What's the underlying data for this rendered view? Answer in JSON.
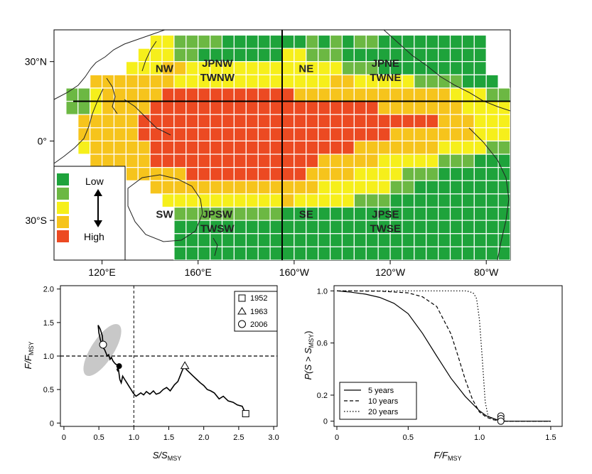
{
  "colors": {
    "scale": [
      "#1ea33b",
      "#6cb843",
      "#f6ef1b",
      "#f6c41c",
      "#ec4a22"
    ],
    "ocean": "#ffffff",
    "line": "#000000",
    "ellipse": "#c8c8c8",
    "grid": "#ffffff"
  },
  "chart_data": [
    {
      "type": "heatmap",
      "title": "",
      "x_ticks": [
        "120°E",
        "160°E",
        "160°W",
        "120°W",
        "80°W"
      ],
      "y_ticks": [
        "30°N",
        "0°",
        "30°S"
      ],
      "lon_range": [
        100,
        290
      ],
      "lat_range": [
        -45,
        42
      ],
      "cell_size_deg": 5,
      "cell_levels_note": "0=Low ... 4=High",
      "rows": [
        {
          "lat": 37.5,
          "lon_start": 142.5,
          "levels": [
            2,
            2,
            1,
            1,
            1,
            1,
            0,
            0,
            0,
            0,
            0,
            0,
            0,
            1,
            0,
            1,
            0,
            1,
            1,
            0,
            0,
            0,
            0,
            0,
            0,
            0,
            0,
            0
          ]
        },
        {
          "lat": 32.5,
          "lon_start": 137.5,
          "levels": [
            2,
            2,
            2,
            1,
            1,
            0,
            0,
            0,
            0,
            0,
            0,
            0,
            2,
            2,
            1,
            1,
            1,
            0,
            0,
            0,
            0,
            0,
            0,
            0,
            0,
            0,
            0,
            0,
            0
          ]
        },
        {
          "lat": 27.5,
          "lon_start": 132.5,
          "levels": [
            2,
            2,
            2,
            3,
            3,
            2,
            2,
            2,
            2,
            2,
            2,
            2,
            2,
            2,
            2,
            2,
            2,
            2,
            1,
            1,
            1,
            0,
            0,
            0,
            0,
            0,
            0,
            0,
            0,
            0
          ]
        },
        {
          "lat": 22.5,
          "lon_start": 117.5,
          "levels": [
            3,
            3,
            3,
            3,
            3,
            3,
            3,
            2,
            2,
            2,
            2,
            2,
            2,
            2,
            2,
            2,
            2,
            2,
            2,
            2,
            3,
            3,
            2,
            2,
            2,
            2,
            2,
            1,
            1,
            1,
            1,
            0,
            0,
            0
          ]
        },
        {
          "lat": 17.5,
          "lon_start": 107.5,
          "levels": [
            1,
            1,
            2,
            3,
            3,
            3,
            3,
            3,
            4,
            4,
            4,
            4,
            4,
            4,
            4,
            4,
            4,
            4,
            4,
            3,
            3,
            3,
            3,
            3,
            3,
            3,
            3,
            3,
            3,
            3,
            3,
            3,
            2,
            2,
            2,
            1,
            1
          ]
        },
        {
          "lat": 12.5,
          "lon_start": 107.5,
          "levels": [
            1,
            1,
            2,
            3,
            3,
            3,
            3,
            4,
            4,
            4,
            4,
            4,
            4,
            4,
            4,
            4,
            4,
            4,
            4,
            4,
            4,
            4,
            4,
            4,
            4,
            4,
            3,
            3,
            3,
            3,
            3,
            3,
            3,
            2,
            2,
            2,
            2,
            1,
            1
          ]
        },
        {
          "lat": 7.5,
          "lon_start": 112.5,
          "levels": [
            3,
            3,
            3,
            3,
            3,
            4,
            4,
            4,
            4,
            4,
            4,
            4,
            4,
            4,
            4,
            4,
            4,
            4,
            4,
            4,
            4,
            4,
            4,
            4,
            4,
            4,
            4,
            4,
            4,
            4,
            3,
            3,
            3,
            2,
            2,
            2,
            2,
            2
          ]
        },
        {
          "lat": 2.5,
          "lon_start": 112.5,
          "levels": [
            3,
            3,
            3,
            3,
            3,
            4,
            4,
            4,
            4,
            4,
            4,
            4,
            4,
            4,
            4,
            4,
            4,
            4,
            4,
            4,
            4,
            4,
            4,
            4,
            4,
            4,
            3,
            3,
            3,
            3,
            3,
            3,
            3,
            2,
            2,
            2,
            2,
            2
          ]
        },
        {
          "lat": -2.5,
          "lon_start": 112.5,
          "levels": [
            2,
            3,
            3,
            3,
            3,
            3,
            4,
            4,
            4,
            4,
            4,
            4,
            4,
            4,
            4,
            4,
            4,
            4,
            4,
            4,
            4,
            4,
            4,
            3,
            3,
            3,
            3,
            3,
            3,
            3,
            2,
            2,
            2,
            2,
            1,
            1,
            1,
            0,
            0
          ]
        },
        {
          "lat": -7.5,
          "lon_start": 117.5,
          "levels": [
            3,
            3,
            3,
            3,
            3,
            4,
            4,
            4,
            4,
            4,
            4,
            4,
            4,
            4,
            4,
            4,
            4,
            4,
            4,
            3,
            3,
            3,
            3,
            3,
            2,
            2,
            2,
            2,
            2,
            1,
            1,
            1,
            0,
            0,
            0,
            0
          ]
        },
        {
          "lat": -12.5,
          "lon_start": 122.5,
          "levels": [
            3,
            3,
            3,
            3,
            3,
            3,
            3,
            4,
            4,
            4,
            4,
            4,
            4,
            4,
            4,
            4,
            4,
            3,
            3,
            3,
            3,
            2,
            2,
            2,
            2,
            1,
            1,
            1,
            0,
            0,
            0,
            0,
            0,
            0
          ]
        },
        {
          "lat": -17.5,
          "lon_start": 142.5,
          "levels": [
            3,
            3,
            3,
            3,
            3,
            3,
            3,
            3,
            3,
            3,
            3,
            3,
            3,
            3,
            2,
            2,
            2,
            2,
            2,
            2,
            1,
            1,
            0,
            0,
            0,
            0,
            0,
            0,
            0,
            0
          ]
        },
        {
          "lat": -22.5,
          "lon_start": 147.5,
          "levels": [
            2,
            2,
            2,
            2,
            2,
            2,
            2,
            2,
            2,
            2,
            3,
            2,
            2,
            2,
            2,
            2,
            1,
            1,
            1,
            0,
            0,
            0,
            0,
            0,
            0,
            0,
            0,
            0,
            0
          ]
        },
        {
          "lat": -27.5,
          "lon_start": 152.5,
          "levels": [
            1,
            1,
            1,
            1,
            1,
            1,
            1,
            1,
            1,
            0,
            0,
            0,
            0,
            0,
            0,
            0,
            0,
            0,
            0,
            0,
            0,
            0,
            0,
            0,
            0,
            0,
            0,
            0
          ]
        },
        {
          "lat": -32.5,
          "lon_start": 152.5,
          "levels": [
            0,
            0,
            0,
            0,
            0,
            0,
            0,
            0,
            0,
            0,
            0,
            0,
            0,
            0,
            0,
            0,
            0,
            0,
            0,
            0,
            0,
            0,
            0,
            0,
            0,
            0,
            0,
            0
          ]
        },
        {
          "lat": -37.5,
          "lon_start": 152.5,
          "levels": [
            0,
            0,
            0,
            0,
            0,
            0,
            0,
            0,
            0,
            0,
            0,
            0,
            0,
            0,
            0,
            0,
            0,
            0,
            0,
            0,
            0,
            0,
            0,
            0,
            0,
            0,
            0,
            0
          ]
        },
        {
          "lat": -42.5,
          "lon_start": 152.5,
          "levels": [
            0,
            0,
            0,
            0,
            0,
            0,
            0,
            0,
            0,
            0,
            0,
            0,
            0,
            0,
            0,
            0,
            0,
            0,
            0,
            0,
            0,
            0,
            0,
            0,
            0,
            0,
            0,
            0
          ]
        }
      ],
      "boundaries": {
        "equator_line_lat": 15,
        "equator_line_lon": [
          108,
          293
        ],
        "meridian_line_lon": 195,
        "meridian_line_lat": [
          -45,
          42
        ]
      },
      "regions": [
        {
          "label": "NW",
          "lon": 146,
          "lat": 26
        },
        {
          "label": "JPNW\nTWNW",
          "lon": 168,
          "lat": 28
        },
        {
          "label": "NE",
          "lon": 205,
          "lat": 26
        },
        {
          "label": "JPNE\nTWNE",
          "lon": 238,
          "lat": 28
        },
        {
          "label": "SW",
          "lon": 146,
          "lat": -29
        },
        {
          "label": "JPSW\nTWSW",
          "lon": 168,
          "lat": -29
        },
        {
          "label": "SE",
          "lon": 205,
          "lat": -29
        },
        {
          "label": "JPSE\nTWSE",
          "lon": 238,
          "lat": -29
        }
      ],
      "legend": {
        "labels": [
          "Low",
          "High"
        ],
        "placement": "bottom-left"
      }
    },
    {
      "type": "line",
      "xlabel_main": "S/S",
      "xlabel_sub": "MSY",
      "ylabel_main": "F/F",
      "ylabel_sub": "MSY",
      "x_ticks": [
        "0",
        "0.5",
        "1.0",
        "1.5",
        "2.0",
        "2.5",
        "3.0"
      ],
      "y_ticks": [
        "0",
        "0.5",
        "1.0",
        "1.5",
        "2.0"
      ],
      "xlim": [
        -0.05,
        3.05
      ],
      "ylim": [
        -0.05,
        2.05
      ],
      "reference_lines": {
        "x": 1.0,
        "y": 1.0
      },
      "ellipse": {
        "cx": 0.55,
        "cy": 1.09,
        "rx": 0.43,
        "ry": 0.14,
        "angle_deg": -57
      },
      "series": {
        "x": [
          2.6,
          2.55,
          2.48,
          2.42,
          2.35,
          2.28,
          2.22,
          2.15,
          2.1,
          2.05,
          2.0,
          1.95,
          1.9,
          1.85,
          1.8,
          1.75,
          1.72,
          1.68,
          1.63,
          1.58,
          1.52,
          1.47,
          1.42,
          1.37,
          1.32,
          1.28,
          1.23,
          1.18,
          1.14,
          1.1,
          1.06,
          1.03,
          0.99,
          0.96,
          0.93,
          0.9,
          0.87,
          0.84,
          0.82,
          0.8,
          0.78,
          0.77,
          0.76,
          0.79,
          0.74,
          0.72,
          0.7,
          0.68,
          0.66,
          0.64,
          0.62,
          0.6,
          0.58,
          0.56,
          0.54,
          0.52,
          0.5,
          0.49,
          0.52,
          0.55,
          0.56
        ],
        "y": [
          0.14,
          0.25,
          0.27,
          0.31,
          0.33,
          0.4,
          0.36,
          0.45,
          0.48,
          0.5,
          0.56,
          0.6,
          0.65,
          0.7,
          0.75,
          0.8,
          0.85,
          0.75,
          0.62,
          0.57,
          0.48,
          0.53,
          0.5,
          0.45,
          0.43,
          0.48,
          0.43,
          0.47,
          0.42,
          0.45,
          0.42,
          0.4,
          0.45,
          0.5,
          0.55,
          0.6,
          0.65,
          0.7,
          0.6,
          0.65,
          0.8,
          0.78,
          0.8,
          0.85,
          0.88,
          0.9,
          0.93,
          0.98,
          0.95,
          1.02,
          1.0,
          1.05,
          1.1,
          1.12,
          1.18,
          1.25,
          1.35,
          1.46,
          1.4,
          1.3,
          1.17
        ]
      },
      "markers": [
        {
          "year": "1952",
          "shape": "square",
          "x": 2.6,
          "y": 0.14
        },
        {
          "year": "1963",
          "shape": "triangle",
          "x": 1.73,
          "y": 0.86
        },
        {
          "year": "2006",
          "shape": "circle",
          "x": 0.56,
          "y": 1.17
        }
      ],
      "extra_point": {
        "x": 0.79,
        "y": 0.85
      },
      "legend": {
        "placement": "top-right",
        "entries": [
          "1952",
          "1963",
          "2006"
        ]
      }
    },
    {
      "type": "line",
      "xlabel_main": "F/F",
      "xlabel_sub": "MSY",
      "ylabel_main": "P(S > S",
      "ylabel_sub": "MSY",
      "ylabel_end": ")",
      "x_ticks": [
        "0",
        "0.5",
        "1.0",
        "1.5"
      ],
      "y_ticks": [
        "0",
        "0.2",
        "0.6",
        "1.0"
      ],
      "y_tick_values": [
        0,
        0.2,
        0.6,
        1.0
      ],
      "xlim": [
        -0.02,
        1.58
      ],
      "ylim": [
        -0.04,
        1.04
      ],
      "series": [
        {
          "name": "5 years",
          "dash": "solid",
          "x": [
            0,
            0.1,
            0.2,
            0.3,
            0.4,
            0.5,
            0.6,
            0.7,
            0.8,
            0.9,
            1.0,
            1.05,
            1.1,
            1.15,
            1.2,
            1.3,
            1.5
          ],
          "y": [
            1.0,
            0.99,
            0.975,
            0.95,
            0.905,
            0.825,
            0.675,
            0.5,
            0.33,
            0.19,
            0.08,
            0.04,
            0.02,
            0.0,
            0.0,
            0.0,
            0.0
          ]
        },
        {
          "name": "10 years",
          "dash": "dashed",
          "x": [
            0,
            0.3,
            0.5,
            0.6,
            0.7,
            0.8,
            0.85,
            0.9,
            0.95,
            1.0,
            1.05,
            1.1,
            1.15,
            1.3,
            1.5
          ],
          "y": [
            1.0,
            0.998,
            0.985,
            0.955,
            0.88,
            0.67,
            0.5,
            0.32,
            0.17,
            0.07,
            0.03,
            0.01,
            0.0,
            0.0,
            0.0
          ]
        },
        {
          "name": "20 years",
          "dash": "dotted",
          "x": [
            0,
            0.5,
            0.8,
            0.9,
            0.93,
            0.96,
            0.98,
            1.0,
            1.02,
            1.04,
            1.06,
            1.1,
            1.2,
            1.5
          ],
          "y": [
            1.0,
            1.0,
            1.0,
            1.0,
            0.995,
            0.98,
            0.94,
            0.78,
            0.48,
            0.15,
            0.04,
            0.01,
            0.0,
            0.0
          ]
        }
      ],
      "circles": [
        {
          "x": 1.15,
          "y": 0.04
        },
        {
          "x": 1.15,
          "y": 0.02
        },
        {
          "x": 1.15,
          "y": 0.0
        }
      ],
      "legend": {
        "placement": "bottom-left",
        "entries": [
          "5 years",
          "10 years",
          "20 years"
        ]
      }
    }
  ]
}
